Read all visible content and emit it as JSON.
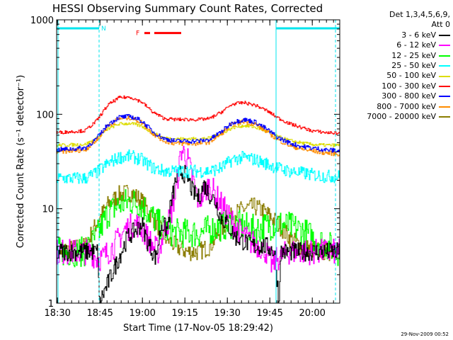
{
  "chart_data": {
    "type": "line",
    "title": "HESSI Observing Summary Count Rates, Corrected",
    "xlabel": "Start Time (17-Nov-05 18:29:42)",
    "ylabel": "Corrected Count Rate (s⁻¹ detector⁻¹)",
    "yscale": "log",
    "ylim": [
      1,
      1000
    ],
    "xlim_minutes": [
      0,
      100
    ],
    "x_tick_labels": [
      "18:30",
      "18:45",
      "19:00",
      "19:15",
      "19:30",
      "19:45",
      "20:00"
    ],
    "x_ticks_minutes": [
      0.3,
      15.3,
      30.3,
      45.3,
      60.3,
      75.3,
      90.3
    ],
    "y_tick_labels": [
      "1",
      "10",
      "100",
      "1000"
    ],
    "y_ticks": [
      1,
      10,
      100,
      1000
    ],
    "legend_header": [
      "Det 1,3,4,5,6,9,",
      "Att 0"
    ],
    "series": [
      {
        "name": "3 - 6 keV",
        "color": "#000000",
        "x": [
          0,
          14.5,
          15,
          25,
          28,
          30,
          32,
          35,
          37,
          39,
          40,
          42,
          44,
          46,
          48,
          50,
          52,
          54,
          56,
          58,
          60,
          63,
          66,
          70,
          74,
          77,
          78.5,
          79,
          90,
          100
        ],
        "y": [
          3.5,
          3.5,
          1,
          5,
          6,
          7,
          4.5,
          3,
          7,
          6,
          10,
          20,
          25,
          22,
          15,
          13,
          18,
          14,
          12,
          8,
          7,
          5,
          4.5,
          4,
          4,
          3.5,
          1,
          3.5,
          3.5,
          3.5
        ]
      },
      {
        "name": "6 - 12 keV",
        "color": "#ff00ff",
        "x": [
          0,
          12,
          14,
          16,
          20,
          24,
          28,
          30,
          32,
          34,
          36,
          38,
          40,
          42,
          44,
          46,
          48,
          50,
          52,
          54,
          56,
          60,
          64,
          68,
          72,
          74,
          76,
          78,
          82,
          86,
          100
        ],
        "y": [
          3.5,
          3.5,
          3,
          3,
          4,
          6,
          7,
          6,
          5,
          4,
          3.5,
          6,
          8,
          15,
          42,
          35,
          20,
          12,
          15,
          18,
          14,
          9,
          6,
          4.5,
          4,
          3.5,
          2.5,
          3,
          3.5,
          3.5,
          3.5
        ]
      },
      {
        "name": "12 - 25 keV",
        "color": "#00ff00",
        "x": [
          0,
          10,
          14,
          18,
          22,
          26,
          30,
          34,
          38,
          42,
          46,
          50,
          54,
          58,
          62,
          66,
          70,
          74,
          78,
          82,
          86,
          90,
          100
        ],
        "y": [
          3.5,
          3.5,
          5,
          9,
          11,
          12,
          11,
          8,
          6,
          5.5,
          5.5,
          5.5,
          6,
          6.5,
          7,
          6.5,
          6,
          6.5,
          7,
          6.5,
          6,
          5,
          3.5
        ]
      },
      {
        "name": "25 - 50 keV",
        "color": "#00ffff",
        "x": [
          0,
          10,
          14,
          18,
          22,
          26,
          30,
          34,
          38,
          42,
          46,
          50,
          54,
          58,
          62,
          66,
          70,
          74,
          78,
          82,
          86,
          90,
          95,
          100
        ],
        "y": [
          21,
          21,
          24,
          30,
          35,
          36,
          33,
          27,
          25,
          25,
          25,
          25,
          25,
          27,
          33,
          35,
          33,
          30,
          27,
          25,
          24,
          23,
          22,
          22
        ]
      },
      {
        "name": "50 - 100 keV",
        "color": "#dcdc00",
        "x": [
          0,
          10,
          14,
          18,
          22,
          26,
          30,
          34,
          38,
          42,
          46,
          50,
          54,
          58,
          62,
          66,
          70,
          74,
          78,
          82,
          86,
          90,
          95,
          100
        ],
        "y": [
          47,
          48,
          55,
          70,
          79,
          80,
          75,
          63,
          56,
          55,
          55,
          55,
          56,
          62,
          72,
          76,
          73,
          66,
          58,
          53,
          50,
          48,
          47,
          47
        ]
      },
      {
        "name": "100 - 300 keV",
        "color": "#ff0000",
        "x": [
          0,
          10,
          14,
          18,
          22,
          26,
          30,
          34,
          38,
          42,
          46,
          50,
          54,
          58,
          62,
          66,
          70,
          74,
          78,
          82,
          86,
          90,
          95,
          100
        ],
        "y": [
          64,
          67,
          85,
          125,
          150,
          152,
          135,
          105,
          90,
          88,
          88,
          88,
          90,
          105,
          128,
          133,
          125,
          110,
          92,
          80,
          73,
          67,
          64,
          63
        ]
      },
      {
        "name": "300 - 800 keV",
        "color": "#0000ff",
        "x": [
          0,
          10,
          14,
          18,
          22,
          26,
          30,
          34,
          38,
          42,
          46,
          50,
          54,
          58,
          62,
          66,
          70,
          74,
          78,
          82,
          86,
          90,
          95,
          100
        ],
        "y": [
          42,
          44,
          55,
          78,
          93,
          95,
          85,
          65,
          55,
          52,
          52,
          52,
          54,
          65,
          82,
          88,
          83,
          70,
          57,
          50,
          46,
          44,
          42,
          41
        ]
      },
      {
        "name": "800 - 7000 keV",
        "color": "#ff8c00",
        "x": [
          0,
          10,
          14,
          18,
          22,
          26,
          30,
          34,
          38,
          42,
          46,
          50,
          54,
          58,
          62,
          66,
          70,
          74,
          78,
          82,
          86,
          90,
          95,
          100
        ],
        "y": [
          40,
          42,
          53,
          75,
          90,
          92,
          82,
          62,
          52,
          49,
          49,
          49,
          51,
          62,
          78,
          84,
          79,
          66,
          54,
          47,
          43,
          41,
          39,
          38
        ]
      },
      {
        "name": "7000 - 20000 keV",
        "color": "#8b7d00",
        "x": [
          0,
          10,
          14,
          18,
          22,
          26,
          30,
          34,
          38,
          42,
          46,
          50,
          54,
          58,
          62,
          66,
          70,
          74,
          78,
          82,
          86,
          90,
          95,
          100
        ],
        "y": [
          3.5,
          4,
          7,
          11,
          14,
          15,
          12,
          8,
          5,
          4,
          3.5,
          3.5,
          4,
          6,
          8.5,
          10,
          10.5,
          9,
          7,
          5,
          4,
          3.7,
          3.5,
          3.5
        ]
      }
    ],
    "annotations": {
      "night_label": "N",
      "flare_label": "F",
      "night_segments_minutes": [
        [
          0,
          15
        ],
        [
          77.5,
          100
        ]
      ],
      "saa_dashed_lines_minutes": [
        15,
        98.5
      ],
      "flare_segments_minutes": [
        [
          31,
          33
        ],
        [
          34.5,
          44
        ]
      ]
    }
  },
  "footer": "29-Nov-2009 00:52"
}
